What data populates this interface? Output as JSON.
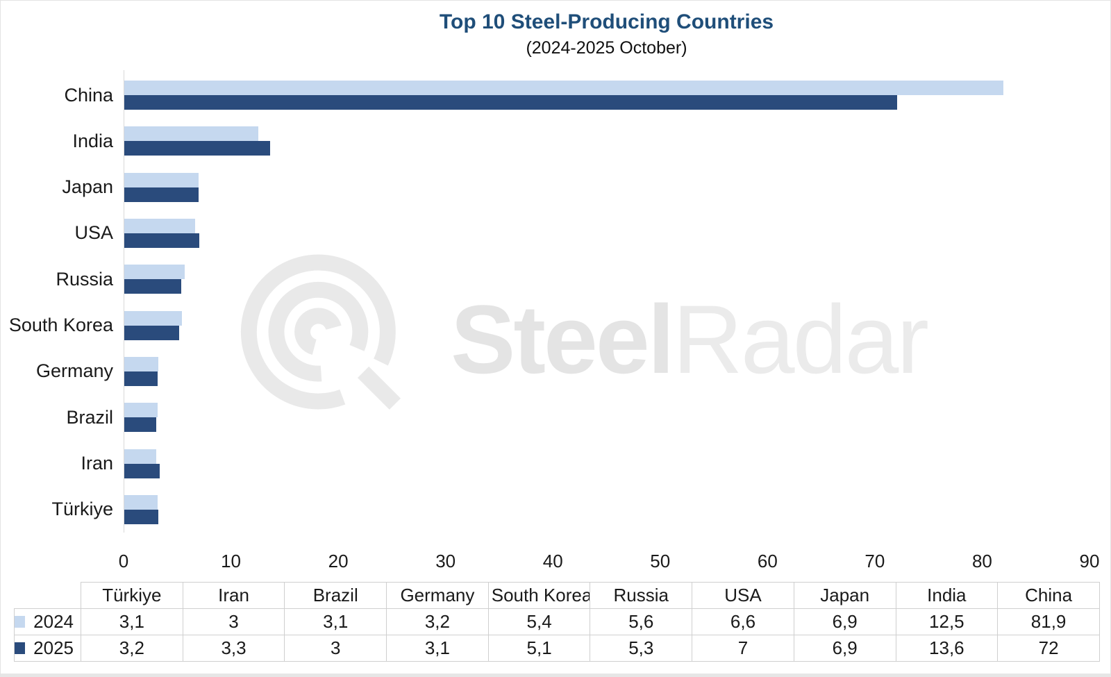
{
  "title": "Top 10 Steel-Producing Countries",
  "subtitle": "(2024-2025 October)",
  "watermark": {
    "steel": "Steel",
    "radar": "Radar"
  },
  "colors": {
    "title": "#1f4e79",
    "series_2024": "#c5d8ef",
    "series_2025": "#2a4b7c",
    "axis_line": "#d9d9d9",
    "table_border": "#cfcfcf",
    "watermark_gray": "#e9e9e9"
  },
  "chart_data": {
    "type": "bar",
    "orientation": "horizontal",
    "title": "Top 10 Steel-Producing Countries",
    "subtitle": "(2024-2025 October)",
    "categories": [
      "China",
      "India",
      "Japan",
      "USA",
      "Russia",
      "South Korea",
      "Germany",
      "Brazil",
      "Iran",
      "Türkiye"
    ],
    "series": [
      {
        "name": "2024",
        "color": "#c5d8ef",
        "values": [
          81.9,
          12.5,
          6.9,
          6.6,
          5.6,
          5.4,
          3.2,
          3.1,
          3,
          3.1
        ]
      },
      {
        "name": "2025",
        "color": "#2a4b7c",
        "values": [
          72,
          13.6,
          6.9,
          7,
          5.3,
          5.1,
          3.1,
          3,
          3.3,
          3.2
        ]
      }
    ],
    "xlim": [
      0,
      90
    ],
    "x_ticks": [
      0,
      10,
      20,
      30,
      40,
      50,
      60,
      70,
      80,
      90
    ],
    "grid": false,
    "legend_position": "table-row-labels"
  },
  "data_table": {
    "columns": [
      "Türkiye",
      "Iran",
      "Brazil",
      "Germany",
      "South Korea",
      "Russia",
      "USA",
      "Japan",
      "India",
      "China"
    ],
    "rows": [
      {
        "label": "2024",
        "swatch": "#c5d8ef",
        "values": [
          "3,1",
          "3",
          "3,1",
          "3,2",
          "5,4",
          "5,6",
          "6,6",
          "6,9",
          "12,5",
          "81,9"
        ]
      },
      {
        "label": "2025",
        "swatch": "#2a4b7c",
        "values": [
          "3,2",
          "3,3",
          "3",
          "3,1",
          "5,1",
          "5,3",
          "7",
          "6,9",
          "13,6",
          "72"
        ]
      }
    ]
  }
}
